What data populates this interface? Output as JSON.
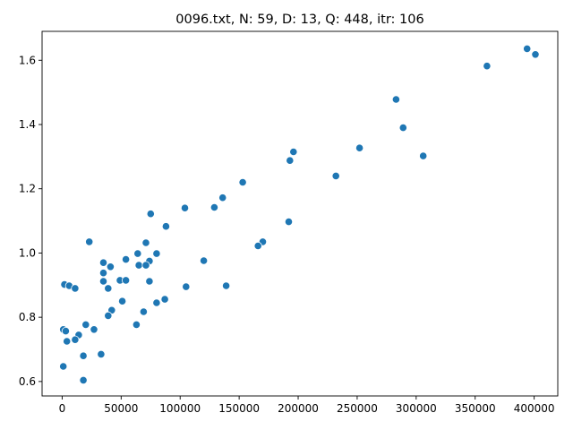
{
  "chart_data": {
    "type": "scatter",
    "title": "0096.txt, N: 59, D: 13, Q: 448, itr: 106",
    "xlabel": "",
    "ylabel": "",
    "xlim": [
      -17000,
      420000
    ],
    "ylim": [
      0.555,
      1.69
    ],
    "xticks": [
      0,
      50000,
      100000,
      150000,
      200000,
      250000,
      300000,
      350000,
      400000
    ],
    "xtick_labels": [
      "0",
      "50000",
      "100000",
      "150000",
      "200000",
      "250000",
      "300000",
      "350000",
      "400000"
    ],
    "yticks": [
      0.6,
      0.8,
      1.0,
      1.2,
      1.4,
      1.6
    ],
    "ytick_labels": [
      "0.6",
      "0.8",
      "1.0",
      "1.2",
      "1.4",
      "1.6"
    ],
    "grid": false,
    "marker_color": "#1f77b4",
    "points": [
      [
        394000,
        1.636
      ],
      [
        401000,
        1.618
      ],
      [
        360000,
        1.582
      ],
      [
        283000,
        1.478
      ],
      [
        289000,
        1.39
      ],
      [
        196000,
        1.315
      ],
      [
        252000,
        1.327
      ],
      [
        193000,
        1.288
      ],
      [
        306000,
        1.302
      ],
      [
        232000,
        1.24
      ],
      [
        153000,
        1.22
      ],
      [
        136000,
        1.172
      ],
      [
        129000,
        1.142
      ],
      [
        104000,
        1.14
      ],
      [
        75000,
        1.122
      ],
      [
        192000,
        1.097
      ],
      [
        88000,
        1.083
      ],
      [
        23000,
        1.035
      ],
      [
        71000,
        1.032
      ],
      [
        170000,
        1.035
      ],
      [
        166000,
        1.022
      ],
      [
        64000,
        0.998
      ],
      [
        80000,
        0.998
      ],
      [
        54000,
        0.98
      ],
      [
        74000,
        0.975
      ],
      [
        120000,
        0.976
      ],
      [
        35000,
        0.97
      ],
      [
        65000,
        0.962
      ],
      [
        71000,
        0.962
      ],
      [
        41000,
        0.957
      ],
      [
        35000,
        0.938
      ],
      [
        35000,
        0.912
      ],
      [
        49000,
        0.915
      ],
      [
        54000,
        0.915
      ],
      [
        74000,
        0.912
      ],
      [
        2000,
        0.902
      ],
      [
        6000,
        0.898
      ],
      [
        11000,
        0.89
      ],
      [
        39000,
        0.89
      ],
      [
        105000,
        0.895
      ],
      [
        139000,
        0.898
      ],
      [
        51000,
        0.85
      ],
      [
        87000,
        0.856
      ],
      [
        80000,
        0.845
      ],
      [
        42000,
        0.822
      ],
      [
        69000,
        0.817
      ],
      [
        39000,
        0.805
      ],
      [
        20000,
        0.777
      ],
      [
        63000,
        0.777
      ],
      [
        1000,
        0.762
      ],
      [
        3000,
        0.757
      ],
      [
        27000,
        0.762
      ],
      [
        14000,
        0.745
      ],
      [
        4000,
        0.725
      ],
      [
        11000,
        0.73
      ],
      [
        33000,
        0.685
      ],
      [
        18000,
        0.68
      ],
      [
        1000,
        0.647
      ],
      [
        18000,
        0.604
      ]
    ]
  }
}
